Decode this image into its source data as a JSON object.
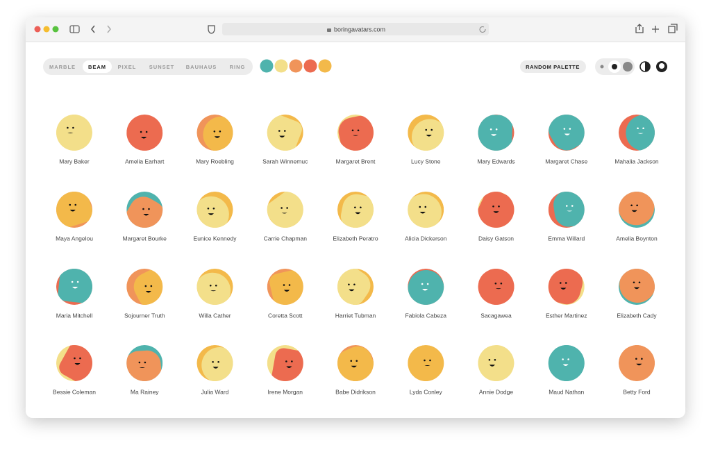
{
  "browser": {
    "url": "boringavatars.com"
  },
  "toolbar": {
    "variants": [
      "MARBLE",
      "BEAM",
      "PIXEL",
      "SUNSET",
      "BAUHAUS",
      "RING"
    ],
    "selected_variant": "BEAM",
    "palette": [
      "#4fb3ad",
      "#f3df8a",
      "#f0945a",
      "#ec6b50",
      "#f3b94a"
    ],
    "random_button": "RANDOM PALETTE"
  },
  "avatars": [
    {
      "name": "Mary Baker",
      "colors": [
        "#f3df8a",
        "#f3df8a"
      ]
    },
    {
      "name": "Amelia Earhart",
      "colors": [
        "#ec6b50",
        "#ec6b50"
      ]
    },
    {
      "name": "Mary Roebling",
      "colors": [
        "#f0945a",
        "#f3b94a"
      ]
    },
    {
      "name": "Sarah Winnemuc",
      "colors": [
        "#f3b94a",
        "#f3df8a"
      ]
    },
    {
      "name": "Margaret Brent",
      "colors": [
        "#f3df8a",
        "#ec6b50"
      ]
    },
    {
      "name": "Lucy Stone",
      "colors": [
        "#f3b94a",
        "#f3df8a"
      ]
    },
    {
      "name": "Mary Edwards",
      "colors": [
        "#ec6b50",
        "#4fb3ad"
      ]
    },
    {
      "name": "Margaret Chase",
      "colors": [
        "#ec6b50",
        "#4fb3ad"
      ]
    },
    {
      "name": "Mahalia Jackson",
      "colors": [
        "#ec6b50",
        "#4fb3ad"
      ]
    },
    {
      "name": "Maya Angelou",
      "colors": [
        "#f0945a",
        "#f3b94a"
      ]
    },
    {
      "name": "Margaret Bourke",
      "colors": [
        "#4fb3ad",
        "#f0945a"
      ]
    },
    {
      "name": "Eunice Kennedy",
      "colors": [
        "#f3b94a",
        "#f3df8a"
      ]
    },
    {
      "name": "Carrie Chapman",
      "colors": [
        "#f3b94a",
        "#f3df8a"
      ]
    },
    {
      "name": "Elizabeth Peratro",
      "colors": [
        "#f3b94a",
        "#f3df8a"
      ]
    },
    {
      "name": "Alicia Dickerson",
      "colors": [
        "#f3b94a",
        "#f3df8a"
      ]
    },
    {
      "name": "Daisy Gatson",
      "colors": [
        "#f3df8a",
        "#ec6b50"
      ]
    },
    {
      "name": "Emma Willard",
      "colors": [
        "#ec6b50",
        "#4fb3ad"
      ]
    },
    {
      "name": "Amelia Boynton",
      "colors": [
        "#4fb3ad",
        "#f0945a"
      ]
    },
    {
      "name": "Maria Mitchell",
      "colors": [
        "#ec6b50",
        "#4fb3ad"
      ]
    },
    {
      "name": "Sojourner Truth",
      "colors": [
        "#f0945a",
        "#f3b94a"
      ]
    },
    {
      "name": "Willa Cather",
      "colors": [
        "#f3b94a",
        "#f3df8a"
      ]
    },
    {
      "name": "Coretta Scott",
      "colors": [
        "#f0945a",
        "#f3b94a"
      ]
    },
    {
      "name": "Harriet Tubman",
      "colors": [
        "#f3b94a",
        "#f3df8a"
      ]
    },
    {
      "name": "Fabiola Cabeza",
      "colors": [
        "#ec6b50",
        "#4fb3ad"
      ]
    },
    {
      "name": "Sacagawea",
      "colors": [
        "#ec6b50",
        "#ec6b50"
      ]
    },
    {
      "name": "Esther Martinez",
      "colors": [
        "#f3df8a",
        "#ec6b50"
      ]
    },
    {
      "name": "Elizabeth Cady",
      "colors": [
        "#4fb3ad",
        "#f0945a"
      ]
    },
    {
      "name": "Bessie Coleman",
      "colors": [
        "#f3df8a",
        "#ec6b50"
      ]
    },
    {
      "name": "Ma Rainey",
      "colors": [
        "#4fb3ad",
        "#f0945a"
      ]
    },
    {
      "name": "Julia Ward",
      "colors": [
        "#f3b94a",
        "#f3df8a"
      ]
    },
    {
      "name": "Irene Morgan",
      "colors": [
        "#f3df8a",
        "#ec6b50"
      ]
    },
    {
      "name": "Babe Didrikson",
      "colors": [
        "#f0945a",
        "#f3b94a"
      ]
    },
    {
      "name": "Lyda Conley",
      "colors": [
        "#f3b94a",
        "#f3b94a"
      ]
    },
    {
      "name": "Annie Dodge",
      "colors": [
        "#f3df8a",
        "#f3df8a"
      ]
    },
    {
      "name": "Maud Nathan",
      "colors": [
        "#4fb3ad",
        "#4fb3ad"
      ]
    },
    {
      "name": "Betty Ford",
      "colors": [
        "#f0945a",
        "#f0945a"
      ]
    }
  ]
}
